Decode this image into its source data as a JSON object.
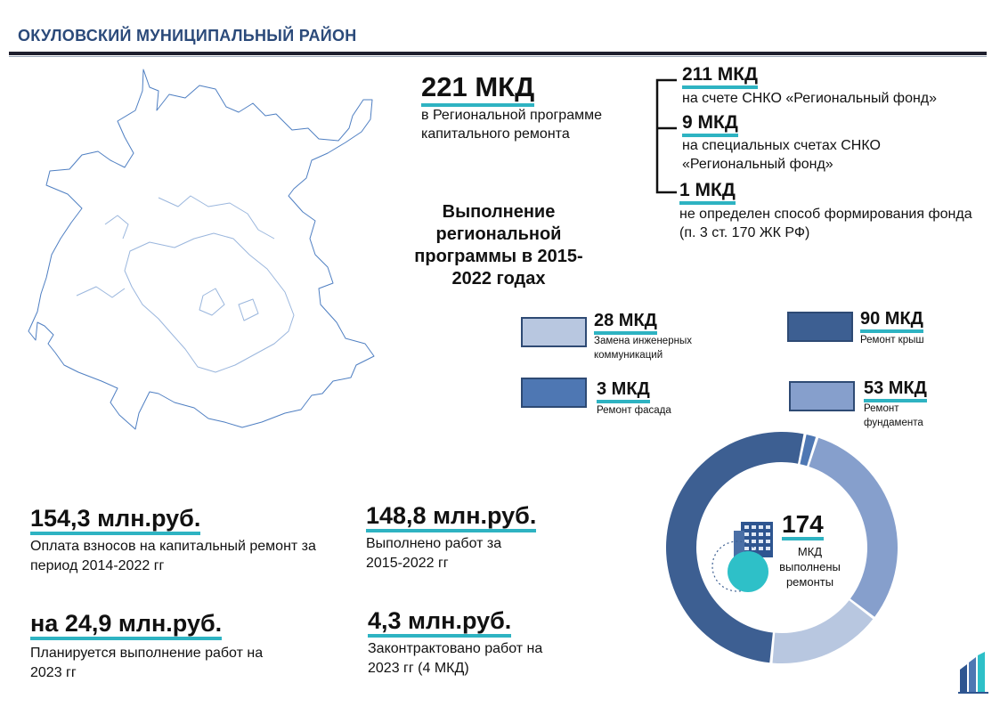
{
  "header": {
    "title": "ОКУЛОВСКИЙ МУНИЦИПАЛЬНЫЙ РАЙОН"
  },
  "total": {
    "value": "221 МКД",
    "caption": "в Региональной программе капитального ремонта"
  },
  "breakdown": [
    {
      "value": "211 МКД",
      "caption": "на счете СНКО «Региональный фонд»"
    },
    {
      "value": "9 МКД",
      "caption": "на специальных счетах СНКО «Региональный фонд»"
    },
    {
      "value": "1 МКД",
      "caption": "не определен способ формирования фонда (п.  3 ст. 170 ЖК РФ)"
    }
  ],
  "section_title": "Выполнение региональной программы в 2015-2022 годах",
  "legend": [
    {
      "value": "28 МКД",
      "caption": "Замена инженерных коммуникаций",
      "color": "#b8c7e0"
    },
    {
      "value": "90 МКД",
      "caption": "Ремонт крыш",
      "color": "#3d5f92"
    },
    {
      "value": "3 МКД",
      "caption": "Ремонт фасада",
      "color": "#4e77b3"
    },
    {
      "value": "53 МКД",
      "caption": "Ремонт фундамента",
      "color": "#869fcc"
    }
  ],
  "money": [
    {
      "value": "154,3 млн.руб.",
      "caption": "Оплата взносов на капитальный ремонт за период 2014-2022 гг"
    },
    {
      "value": "148,8 млн.руб.",
      "caption": "Выполнено работ за 2015-2022 гг"
    },
    {
      "value": "на 24,9 млн.руб.",
      "caption": "Планируется выполнение работ на 2023 гг"
    },
    {
      "value": "4,3 млн.руб.",
      "caption": "Законтрактовано работ на 2023 гг (4 МКД)"
    }
  ],
  "donut": {
    "value": "174",
    "caption": "МКД выполнены ремонты"
  },
  "colors": {
    "accent": "#2eb3c2",
    "title": "#2b4a7a"
  }
}
